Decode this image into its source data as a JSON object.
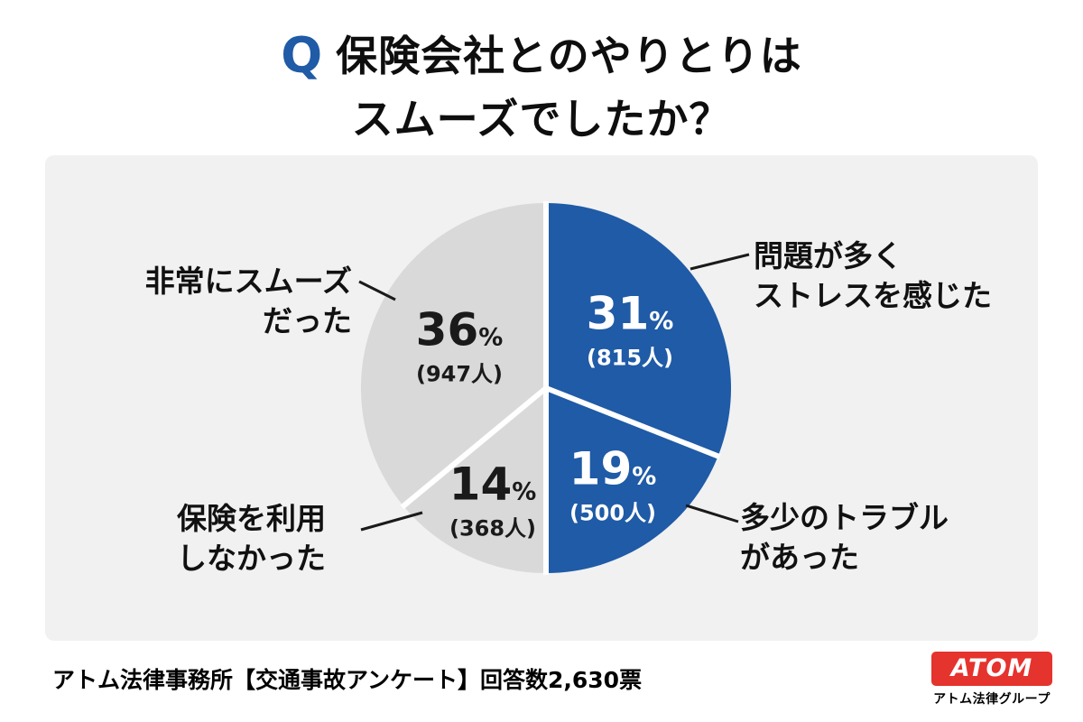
{
  "title": {
    "q_mark": "Q",
    "line1": "保険会社とのやりとりは",
    "line2": "スムーズでしたか？"
  },
  "chart_data": {
    "type": "pie",
    "title": "保険会社とのやりとりはスムーズでしたか？",
    "start_angle_deg": 0,
    "clockwise": true,
    "total_responses": 2630,
    "slices": [
      {
        "label": "問題が多くストレスを感じた",
        "percent": 31,
        "count": 815,
        "count_label": "(815人)",
        "color": "#1f5ba6",
        "text_color": "#ffffff",
        "label_radius": 0.55
      },
      {
        "label": "多少のトラブルがあった",
        "percent": 19,
        "count": 500,
        "count_label": "(500人)",
        "color": "#1f5ba6",
        "text_color": "#ffffff",
        "label_radius": 0.64
      },
      {
        "label": "保険を利用しなかった",
        "percent": 14,
        "count": 368,
        "count_label": "(368人)",
        "color": "#d9d9da",
        "text_color": "#1a1a1a",
        "label_radius": 0.68
      },
      {
        "label": "非常にスムーズだった",
        "percent": 36,
        "count": 947,
        "count_label": "(947人)",
        "color": "#d9d9da",
        "text_color": "#1a1a1a",
        "label_radius": 0.52
      }
    ]
  },
  "callouts": {
    "top_right": {
      "lines": [
        "問題が多く",
        "ストレスを感じた"
      ]
    },
    "bottom_right": {
      "lines": [
        "多少のトラブル",
        "があった"
      ]
    },
    "top_left": {
      "lines": [
        "非常にスムーズ",
        "だった"
      ]
    },
    "bottom_left": {
      "lines": [
        "保険を利用",
        "しなかった"
      ]
    }
  },
  "footer": {
    "source": "アトム法律事務所【交通事故アンケート】回答数2,630票",
    "logo_text": "ATOM",
    "logo_subtext": "アトム法律グループ",
    "logo_color": "#e5332d"
  }
}
